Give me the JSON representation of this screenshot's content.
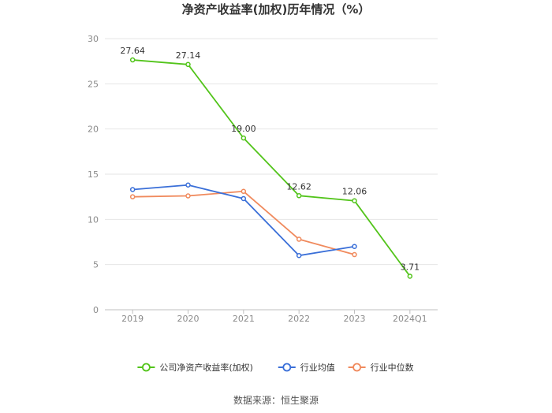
{
  "chart_data": {
    "type": "line",
    "title": "净资产收益率(加权)历年情况（%）",
    "categories": [
      "2019",
      "2020",
      "2021",
      "2022",
      "2023",
      "2024Q1"
    ],
    "ylim": [
      0,
      30
    ],
    "yticks": [
      0,
      5,
      10,
      15,
      20,
      25,
      30
    ],
    "grid": true,
    "legend_position": "bottom",
    "series": [
      {
        "name": "公司净资产收益率(加权)",
        "color": "#52c41a",
        "values": [
          27.64,
          27.14,
          19.0,
          12.62,
          12.06,
          3.71
        ],
        "labels": [
          "27.64",
          "27.14",
          "19.00",
          "12.62",
          "12.06",
          "3.71"
        ]
      },
      {
        "name": "行业均值",
        "color": "#3a6fd8",
        "values": [
          13.3,
          13.8,
          12.3,
          6.0,
          7.0,
          null
        ]
      },
      {
        "name": "行业中位数",
        "color": "#f08a5d",
        "values": [
          12.5,
          12.6,
          13.1,
          7.8,
          6.1,
          null
        ]
      }
    ]
  },
  "source_text": "数据来源：恒生聚源"
}
